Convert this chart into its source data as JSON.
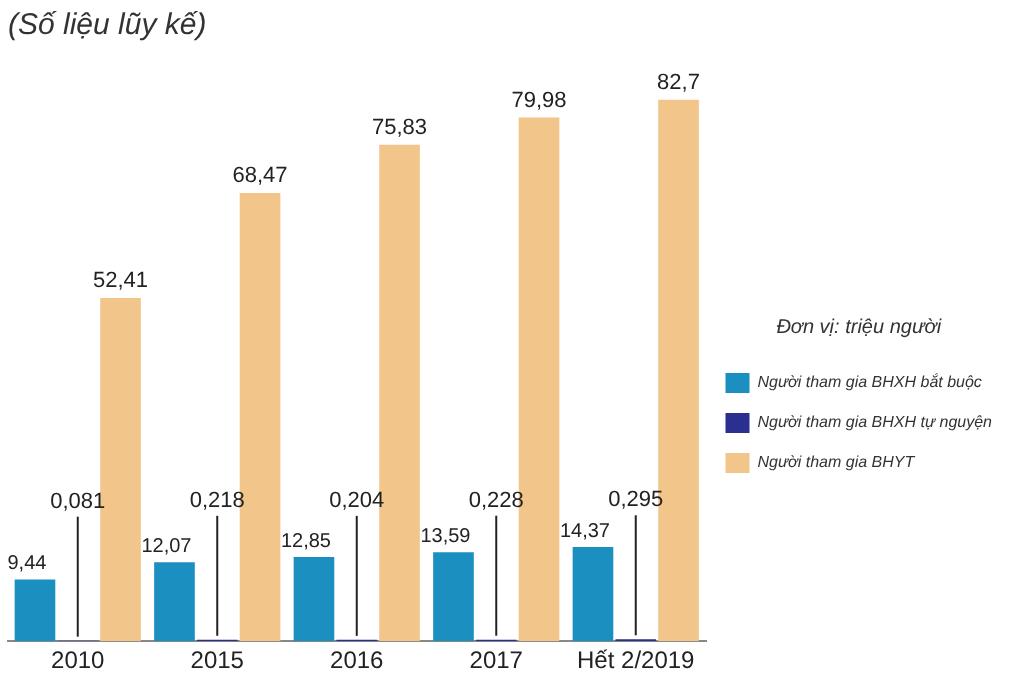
{
  "chart_data": {
    "type": "bar",
    "title": "(Số liệu lũy kế)",
    "legend_title": "Đơn vị: triệu người",
    "categories": [
      "2010",
      "2015",
      "2016",
      "2017",
      "Hết 2/2019"
    ],
    "series": [
      {
        "name": "Người tham gia BHXH bắt buộc",
        "color": "#1a8fc0",
        "values": [
          9.44,
          12.07,
          12.85,
          13.59,
          14.37
        ],
        "value_labels": [
          "9,44",
          "12,07",
          "12,85",
          "13,59",
          "14,37"
        ]
      },
      {
        "name": "Người tham gia BHXH tự nguyện",
        "color": "#2b2f8f",
        "values": [
          0.081,
          0.218,
          0.204,
          0.228,
          0.295
        ],
        "value_labels": [
          "0,081",
          "0,218",
          "0,204",
          "0,228",
          "0,295"
        ]
      },
      {
        "name": "Người tham gia BHYT",
        "color": "#f2c68b",
        "values": [
          52.41,
          68.47,
          75.83,
          79.98,
          82.7
        ],
        "value_labels": [
          "52,41",
          "68,47",
          "75,83",
          "79,98",
          "82,7"
        ]
      }
    ],
    "legend": "right",
    "grid": false
  }
}
